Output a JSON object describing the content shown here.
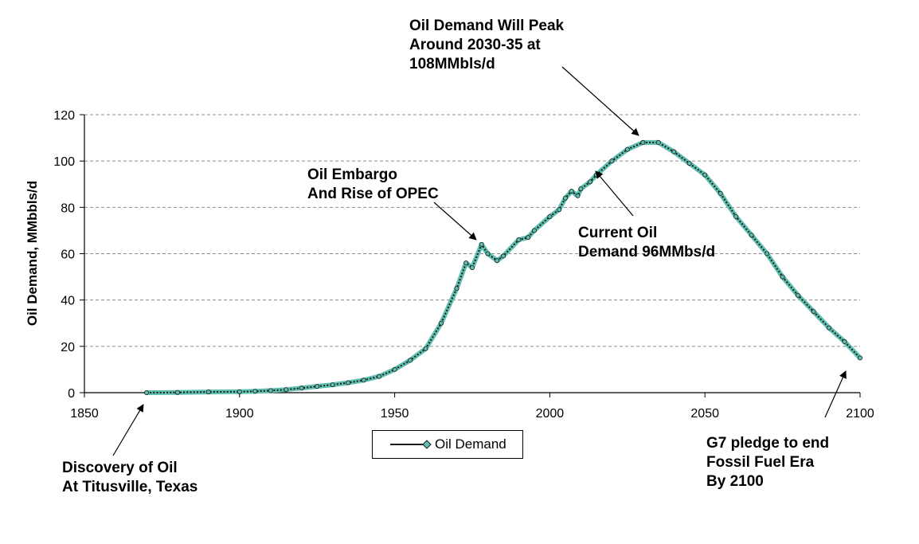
{
  "chart_data": {
    "type": "line",
    "title": "",
    "xlabel": "",
    "ylabel": "Oil Demand, MMbbls/d",
    "xlim": [
      1850,
      2100
    ],
    "ylim": [
      0,
      120
    ],
    "x_ticks": [
      "1850",
      "1900",
      "1950",
      "2000",
      "2050",
      "2100"
    ],
    "y_ticks": [
      "0",
      "20",
      "40",
      "60",
      "80",
      "100",
      "120"
    ],
    "grid": "horizontal dashed",
    "legend_position": "bottom-center",
    "colors": {
      "marker": "#5fbfb0",
      "line": "#1a1a1a"
    },
    "series": [
      {
        "name": "Oil Demand",
        "points": [
          [
            1870,
            0
          ],
          [
            1880,
            0.1
          ],
          [
            1890,
            0.3
          ],
          [
            1900,
            0.4
          ],
          [
            1905,
            0.6
          ],
          [
            1910,
            0.9
          ],
          [
            1915,
            1.3
          ],
          [
            1920,
            2
          ],
          [
            1925,
            2.7
          ],
          [
            1930,
            3.4
          ],
          [
            1935,
            4.3
          ],
          [
            1940,
            5.4
          ],
          [
            1945,
            7
          ],
          [
            1950,
            10
          ],
          [
            1955,
            14
          ],
          [
            1960,
            19
          ],
          [
            1965,
            30
          ],
          [
            1970,
            45
          ],
          [
            1973,
            56
          ],
          [
            1975,
            54
          ],
          [
            1978,
            64
          ],
          [
            1980,
            60
          ],
          [
            1983,
            57
          ],
          [
            1985,
            59
          ],
          [
            1990,
            66
          ],
          [
            1993,
            67
          ],
          [
            1995,
            70
          ],
          [
            2000,
            76
          ],
          [
            2003,
            79
          ],
          [
            2005,
            84
          ],
          [
            2007,
            87
          ],
          [
            2009,
            85
          ],
          [
            2010,
            88
          ],
          [
            2013,
            91
          ],
          [
            2015,
            94
          ],
          [
            2020,
            100
          ],
          [
            2025,
            105
          ],
          [
            2030,
            108
          ],
          [
            2035,
            108
          ],
          [
            2040,
            104
          ],
          [
            2045,
            99
          ],
          [
            2050,
            94
          ],
          [
            2055,
            86
          ],
          [
            2060,
            76
          ],
          [
            2065,
            68
          ],
          [
            2070,
            60
          ],
          [
            2075,
            50
          ],
          [
            2080,
            42
          ],
          [
            2085,
            35
          ],
          [
            2090,
            28
          ],
          [
            2095,
            22
          ],
          [
            2100,
            15
          ]
        ]
      }
    ]
  },
  "annotations": {
    "peak": [
      "Oil Demand Will Peak",
      "Around 2030-35 at",
      "108MMbls/d"
    ],
    "embargo": [
      "Oil Embargo",
      "And Rise of OPEC"
    ],
    "current": [
      "Current Oil",
      "Demand 96MMbs/d"
    ],
    "discovery": [
      "Discovery  of Oil",
      "At Titusville, Texas"
    ],
    "g7": [
      "G7 pledge to end",
      "Fossil Fuel Era",
      "By 2100"
    ]
  }
}
